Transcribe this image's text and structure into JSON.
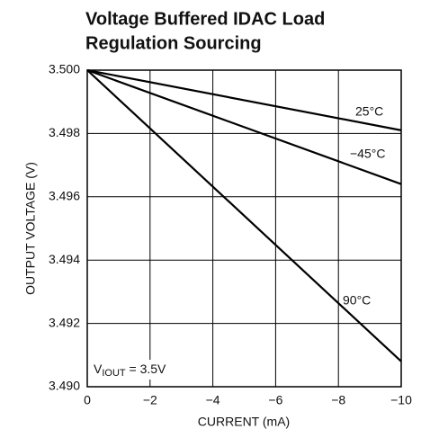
{
  "chart_data": {
    "type": "line",
    "title": [
      "Voltage Buffered IDAC Load",
      "Regulation Sourcing"
    ],
    "xlabel": "CURRENT (mA)",
    "ylabel": "OUTPUT VOLTAGE (V)",
    "x": [
      0,
      -10
    ],
    "series": [
      {
        "name": "25°C",
        "color": "#000000",
        "values": [
          3.5,
          3.4981
        ]
      },
      {
        "name": "−45°C",
        "color": "#000000",
        "values": [
          3.5,
          3.4964
        ]
      },
      {
        "name": "90°C",
        "color": "#000000",
        "values": [
          3.5,
          3.4908
        ]
      }
    ],
    "xlim": [
      0,
      -10
    ],
    "xticks": [
      0,
      {
        "value": -2,
        "label": "−2"
      },
      {
        "value": -4,
        "label": "−4"
      },
      {
        "value": -6,
        "label": "−6"
      },
      {
        "value": -8,
        "label": "−8"
      },
      {
        "value": -10,
        "label": "−10"
      }
    ],
    "ylim": [
      3.49,
      3.5
    ],
    "yticks": [
      {
        "value": 3.49,
        "label": "3.490"
      },
      3.492,
      3.494,
      3.496,
      3.498,
      {
        "value": 3.5,
        "label": "3.500"
      }
    ],
    "grid": true,
    "annotation": {
      "main": "V",
      "sub": "IOUT",
      "rest": " = 3.5V"
    }
  }
}
